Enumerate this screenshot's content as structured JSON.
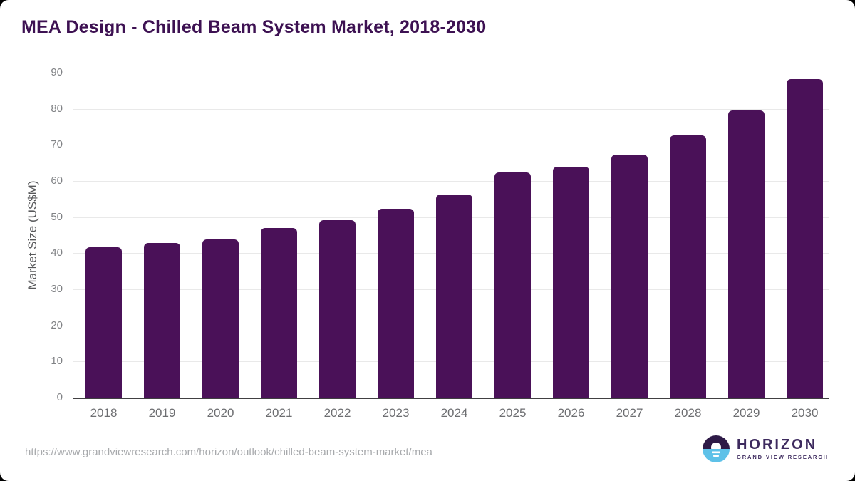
{
  "title": "MEA Design - Chilled Beam System Market, 2018-2030",
  "footer": {
    "source_url": "https://www.grandviewresearch.com/horizon/outlook/chilled-beam-system-market/mea",
    "logo": {
      "name": "HORIZON",
      "tagline": "GRAND VIEW RESEARCH"
    }
  },
  "colors": {
    "title": "#3d1152",
    "bar": "#4a1158",
    "gridline": "#e9e9e9",
    "baseline": "#414042",
    "tick_label": "#808285",
    "tick_label_x": "#6d6e71",
    "axis_title": "#58595b",
    "url_text": "#a7a9ac",
    "logo_purple": "#3d2a5e",
    "logo_dark": "#2e1a47",
    "logo_blue": "#5ec1e8"
  },
  "chart_data": {
    "type": "bar",
    "title": "MEA Design - Chilled Beam System Market, 2018-2030",
    "xlabel": "",
    "ylabel": "Market Size (US$M)",
    "ylim": [
      0,
      90
    ],
    "yticks": [
      0,
      10,
      20,
      30,
      40,
      50,
      60,
      70,
      80,
      90
    ],
    "grid": true,
    "legend": false,
    "categories": [
      "2018",
      "2019",
      "2020",
      "2021",
      "2022",
      "2023",
      "2024",
      "2025",
      "2026",
      "2027",
      "2028",
      "2029",
      "2030"
    ],
    "values": [
      41.6,
      42.8,
      43.9,
      47.0,
      49.1,
      52.4,
      56.3,
      62.3,
      64.0,
      67.4,
      72.7,
      79.5,
      88.2
    ]
  }
}
